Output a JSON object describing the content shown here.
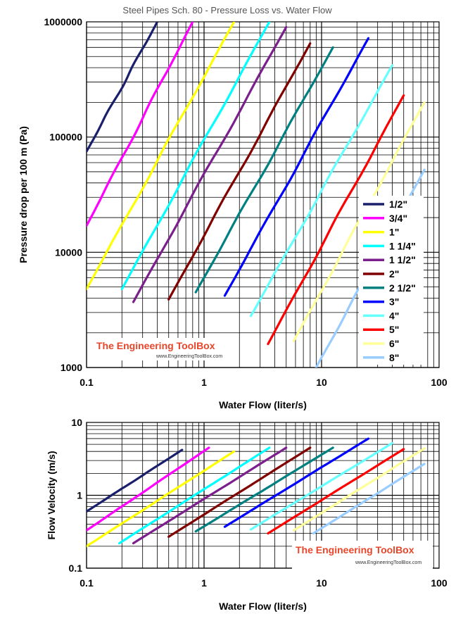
{
  "title": "Steel Pipes Sch. 80 - Pressure Loss vs. Water Flow",
  "watermark": {
    "logo": "The Engineering ToolBox",
    "url": "www.EngineeringToolBox.com"
  },
  "legend": {
    "placement": "right",
    "entries": [
      {
        "label": "1/2\"",
        "color": "#1a1f6b"
      },
      {
        "label": "3/4\"",
        "color": "#ff00ff"
      },
      {
        "label": "1\"",
        "color": "#ffff00"
      },
      {
        "label": "1 1/4\"",
        "color": "#00ffff"
      },
      {
        "label": "1 1/2\"",
        "color": "#7b1f8c"
      },
      {
        "label": "2\"",
        "color": "#800000"
      },
      {
        "label": "2 1/2\"",
        "color": "#008080"
      },
      {
        "label": "3\"",
        "color": "#0000ff"
      },
      {
        "label": "4\"",
        "color": "#66ffff"
      },
      {
        "label": "5\"",
        "color": "#ff0000"
      },
      {
        "label": "6\"",
        "color": "#ffff99"
      },
      {
        "label": "8\"",
        "color": "#99ccff"
      }
    ]
  },
  "chart_data": [
    {
      "type": "line",
      "xscale": "log",
      "yscale": "log",
      "xlabel": "Water Flow (liter/s)",
      "ylabel": "Pressure drop per 100 m (Pa)",
      "xlim": [
        0.1,
        100
      ],
      "ylim": [
        1000,
        1000000
      ],
      "xticks": [
        "0.1",
        "1",
        "10",
        "100"
      ],
      "yticks": [
        "1000",
        "10000",
        "100000",
        "1000000"
      ],
      "grid": true,
      "series": [
        {
          "name": "1/2\"",
          "x": [
            0.1,
            0.4
          ],
          "y": [
            75000,
            1000000
          ]
        },
        {
          "name": "3/4\"",
          "x": [
            0.1,
            0.8
          ],
          "y": [
            17000,
            1000000
          ]
        },
        {
          "name": "1\"",
          "x": [
            0.1,
            1.8
          ],
          "y": [
            4800,
            1000000
          ]
        },
        {
          "name": "1 1/4\"",
          "x": [
            0.2,
            3.6
          ],
          "y": [
            4800,
            1000000
          ]
        },
        {
          "name": "1 1/2\"",
          "x": [
            0.25,
            5
          ],
          "y": [
            3700,
            900000
          ]
        },
        {
          "name": "2\"",
          "x": [
            0.5,
            8
          ],
          "y": [
            3900,
            650000
          ]
        },
        {
          "name": "2 1/2\"",
          "x": [
            0.85,
            12.5
          ],
          "y": [
            4500,
            600000
          ]
        },
        {
          "name": "3\"",
          "x": [
            1.5,
            25
          ],
          "y": [
            4200,
            720000
          ]
        },
        {
          "name": "4\"",
          "x": [
            2.5,
            40
          ],
          "y": [
            2800,
            420000
          ]
        },
        {
          "name": "5\"",
          "x": [
            3.5,
            50
          ],
          "y": [
            1600,
            230000
          ]
        },
        {
          "name": "6\"",
          "x": [
            5.8,
            75
          ],
          "y": [
            1700,
            200000
          ]
        },
        {
          "name": "8\"",
          "x": [
            8.5,
            75
          ],
          "y": [
            900,
            52000
          ]
        }
      ]
    },
    {
      "type": "line",
      "xscale": "log",
      "yscale": "log",
      "xlabel": "Water Flow (liter/s)",
      "ylabel": "Flow Velocity (m/s)",
      "xlim": [
        0.1,
        100
      ],
      "ylim": [
        0.1,
        10
      ],
      "xticks": [
        "0.1",
        "1",
        "10",
        "100"
      ],
      "yticks": [
        "0.1",
        "1",
        "10"
      ],
      "grid": true,
      "series": [
        {
          "name": "1/2\"",
          "x": [
            0.1,
            0.65
          ],
          "y": [
            0.6,
            4.2
          ]
        },
        {
          "name": "3/4\"",
          "x": [
            0.1,
            1.1
          ],
          "y": [
            0.33,
            4.5
          ]
        },
        {
          "name": "1\"",
          "x": [
            0.1,
            1.8
          ],
          "y": [
            0.2,
            4.0
          ]
        },
        {
          "name": "1 1/4\"",
          "x": [
            0.19,
            3.6
          ],
          "y": [
            0.22,
            4.5
          ]
        },
        {
          "name": "1 1/2\"",
          "x": [
            0.25,
            5
          ],
          "y": [
            0.22,
            4.5
          ]
        },
        {
          "name": "2\"",
          "x": [
            0.5,
            8
          ],
          "y": [
            0.27,
            4.5
          ]
        },
        {
          "name": "2 1/2\"",
          "x": [
            0.85,
            12.5
          ],
          "y": [
            0.32,
            4.5
          ]
        },
        {
          "name": "3\"",
          "x": [
            1.5,
            25
          ],
          "y": [
            0.37,
            6.0
          ]
        },
        {
          "name": "4\"",
          "x": [
            2.5,
            40
          ],
          "y": [
            0.34,
            5.2
          ]
        },
        {
          "name": "5\"",
          "x": [
            3.5,
            50
          ],
          "y": [
            0.3,
            4.3
          ]
        },
        {
          "name": "6\"",
          "x": [
            5.8,
            75
          ],
          "y": [
            0.33,
            4.4
          ]
        },
        {
          "name": "8\"",
          "x": [
            8.5,
            75
          ],
          "y": [
            0.3,
            2.7
          ]
        }
      ]
    }
  ]
}
